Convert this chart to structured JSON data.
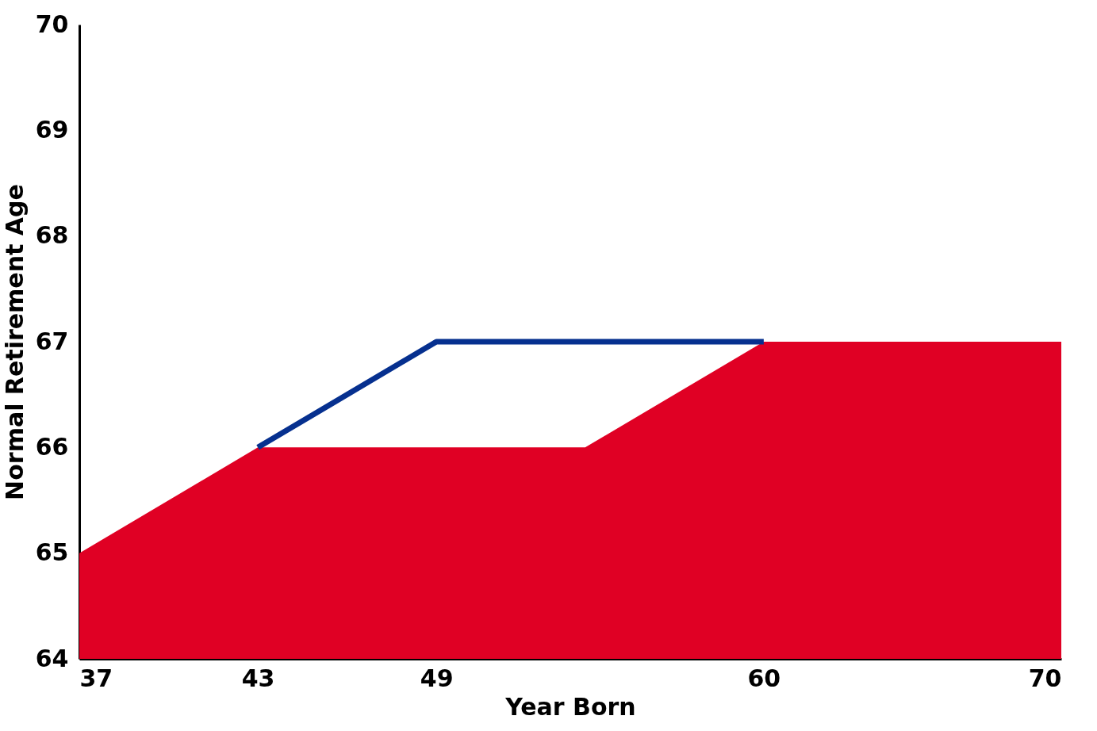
{
  "chart_data": {
    "type": "area",
    "xlabel": "Year Born",
    "ylabel": "Normal Retirement Age",
    "xlim": [
      37,
      70
    ],
    "ylim": [
      64,
      70
    ],
    "xticks": [
      37,
      43,
      49,
      60,
      70
    ],
    "yticks": [
      64,
      65,
      66,
      67,
      68,
      69,
      70
    ],
    "series": [
      {
        "color": "#e00024",
        "x": [
          37,
          43,
          54,
          60,
          70
        ],
        "values": [
          65,
          66,
          66,
          67,
          67
        ]
      },
      {
        "type": "line",
        "color": "#06308f",
        "x": [
          43,
          49,
          60
        ],
        "values": [
          66,
          67,
          67
        ]
      }
    ]
  }
}
